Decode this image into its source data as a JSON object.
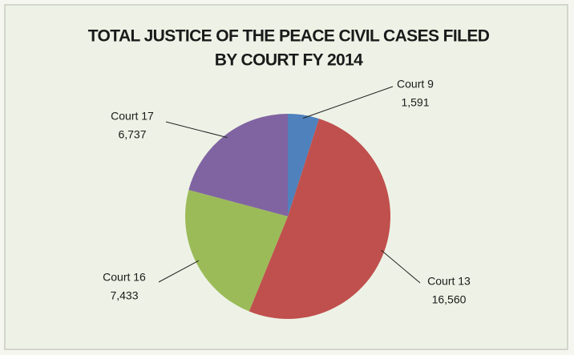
{
  "chart_data": {
    "type": "pie",
    "title": [
      "TOTAL JUSTICE OF THE PEACE CIVIL CASES FILED",
      "BY COURT FY 2014"
    ],
    "categories": [
      "Court 9",
      "Court 13",
      "Court 16",
      "Court 17"
    ],
    "values": [
      1591,
      16560,
      7433,
      6737
    ],
    "value_labels": [
      "1,591",
      "16,560",
      "7,433",
      "6,737"
    ],
    "colors": [
      "#4f81bd",
      "#c0504d",
      "#9bbb59",
      "#8064a2"
    ]
  }
}
